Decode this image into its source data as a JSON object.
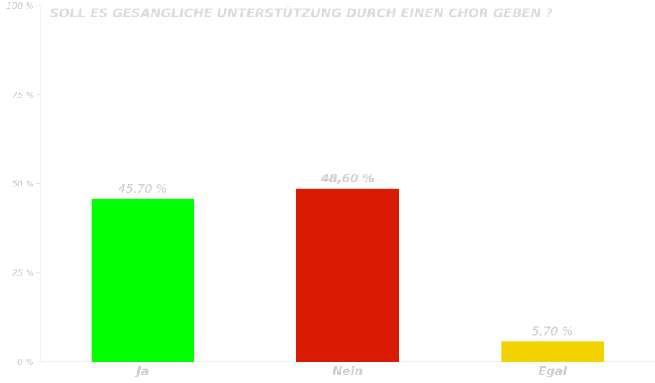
{
  "chart_data": {
    "type": "bar",
    "title": "SOLL ES GESANGLICHE UNTERSTÜTZUNG DURCH EINEN CHOR GEBEN ?",
    "xlabel": "",
    "ylabel": "",
    "categories": [
      "Ja",
      "Nein",
      "Egal"
    ],
    "values": [
      45.7,
      48.6,
      5.7
    ],
    "value_labels": [
      "45,70 %",
      "48,60 %",
      "5,70 %"
    ],
    "bar_colors": [
      "#00ff00",
      "#d81b02",
      "#f2d200"
    ],
    "ylim": [
      0,
      100
    ],
    "yticks": [
      0,
      25,
      50,
      75,
      100
    ],
    "ytick_labels": [
      "0 %",
      "25 %",
      "50 %",
      "75 %",
      "100 %"
    ],
    "grid": false,
    "legend": "none"
  }
}
